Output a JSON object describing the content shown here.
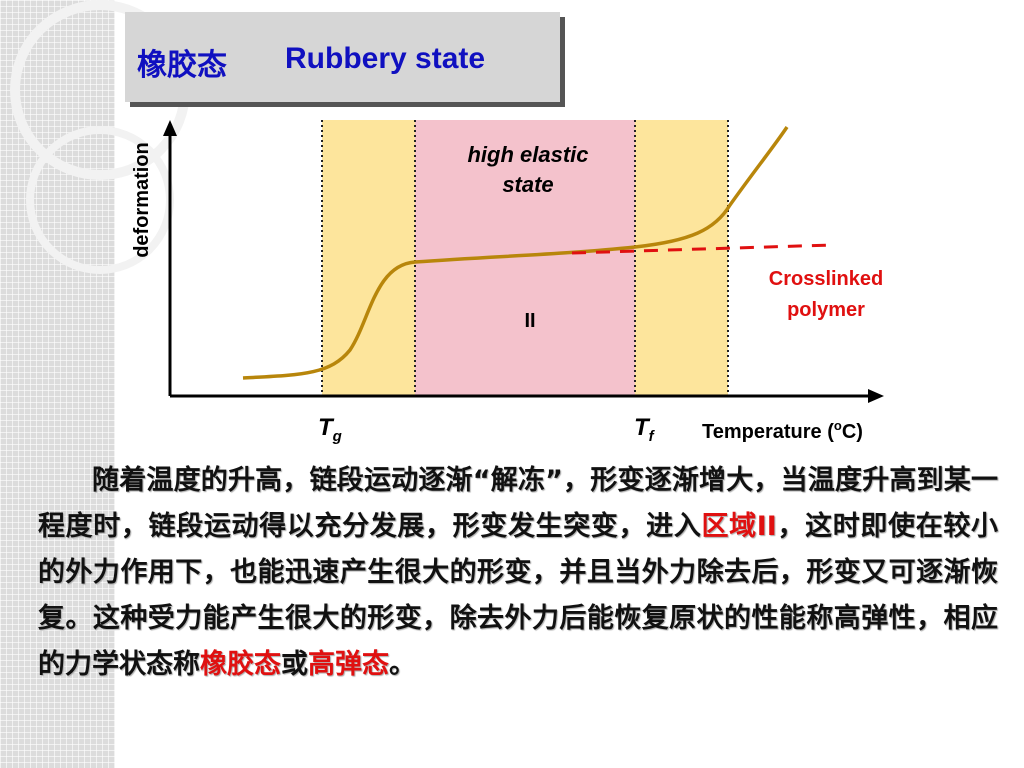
{
  "title": {
    "chinese": "橡胶态",
    "english": "Rubbery state"
  },
  "diagram": {
    "y_axis_label": "deformation",
    "region_label": [
      "high elastic",
      "state"
    ],
    "region_number": "II",
    "curve_label": [
      "Crosslinked",
      "polymer"
    ],
    "tg": {
      "symbol": "T",
      "subscript": "g"
    },
    "tf": {
      "symbol": "T",
      "subscript": "f"
    },
    "x_axis_label": {
      "prefix": "Temperature (",
      "superscript": "o",
      "suffix": "C)"
    }
  },
  "paragraph": [
    {
      "text": "随着温度的升高，链段运动逐渐“解冻”，形变逐渐增大，当温度升高到某一程度时，链段运动得以充分发展，形变发生突变，进入",
      "highlight": false
    },
    {
      "text": "区域II",
      "highlight": true
    },
    {
      "text": "，这时即使在较小的外力作用下，也能迅速产生很大的形变，并且当外力除去后，形变又可逐渐恢复。这种受力能产生很大的形变，除去外力后能恢复原状的性能称高弹性，相应的力学状态称",
      "highlight": false
    },
    {
      "text": "橡胶态",
      "highlight": true
    },
    {
      "text": "或",
      "highlight": false
    },
    {
      "text": "高弹态",
      "highlight": true
    },
    {
      "text": "。",
      "highlight": false
    }
  ]
}
